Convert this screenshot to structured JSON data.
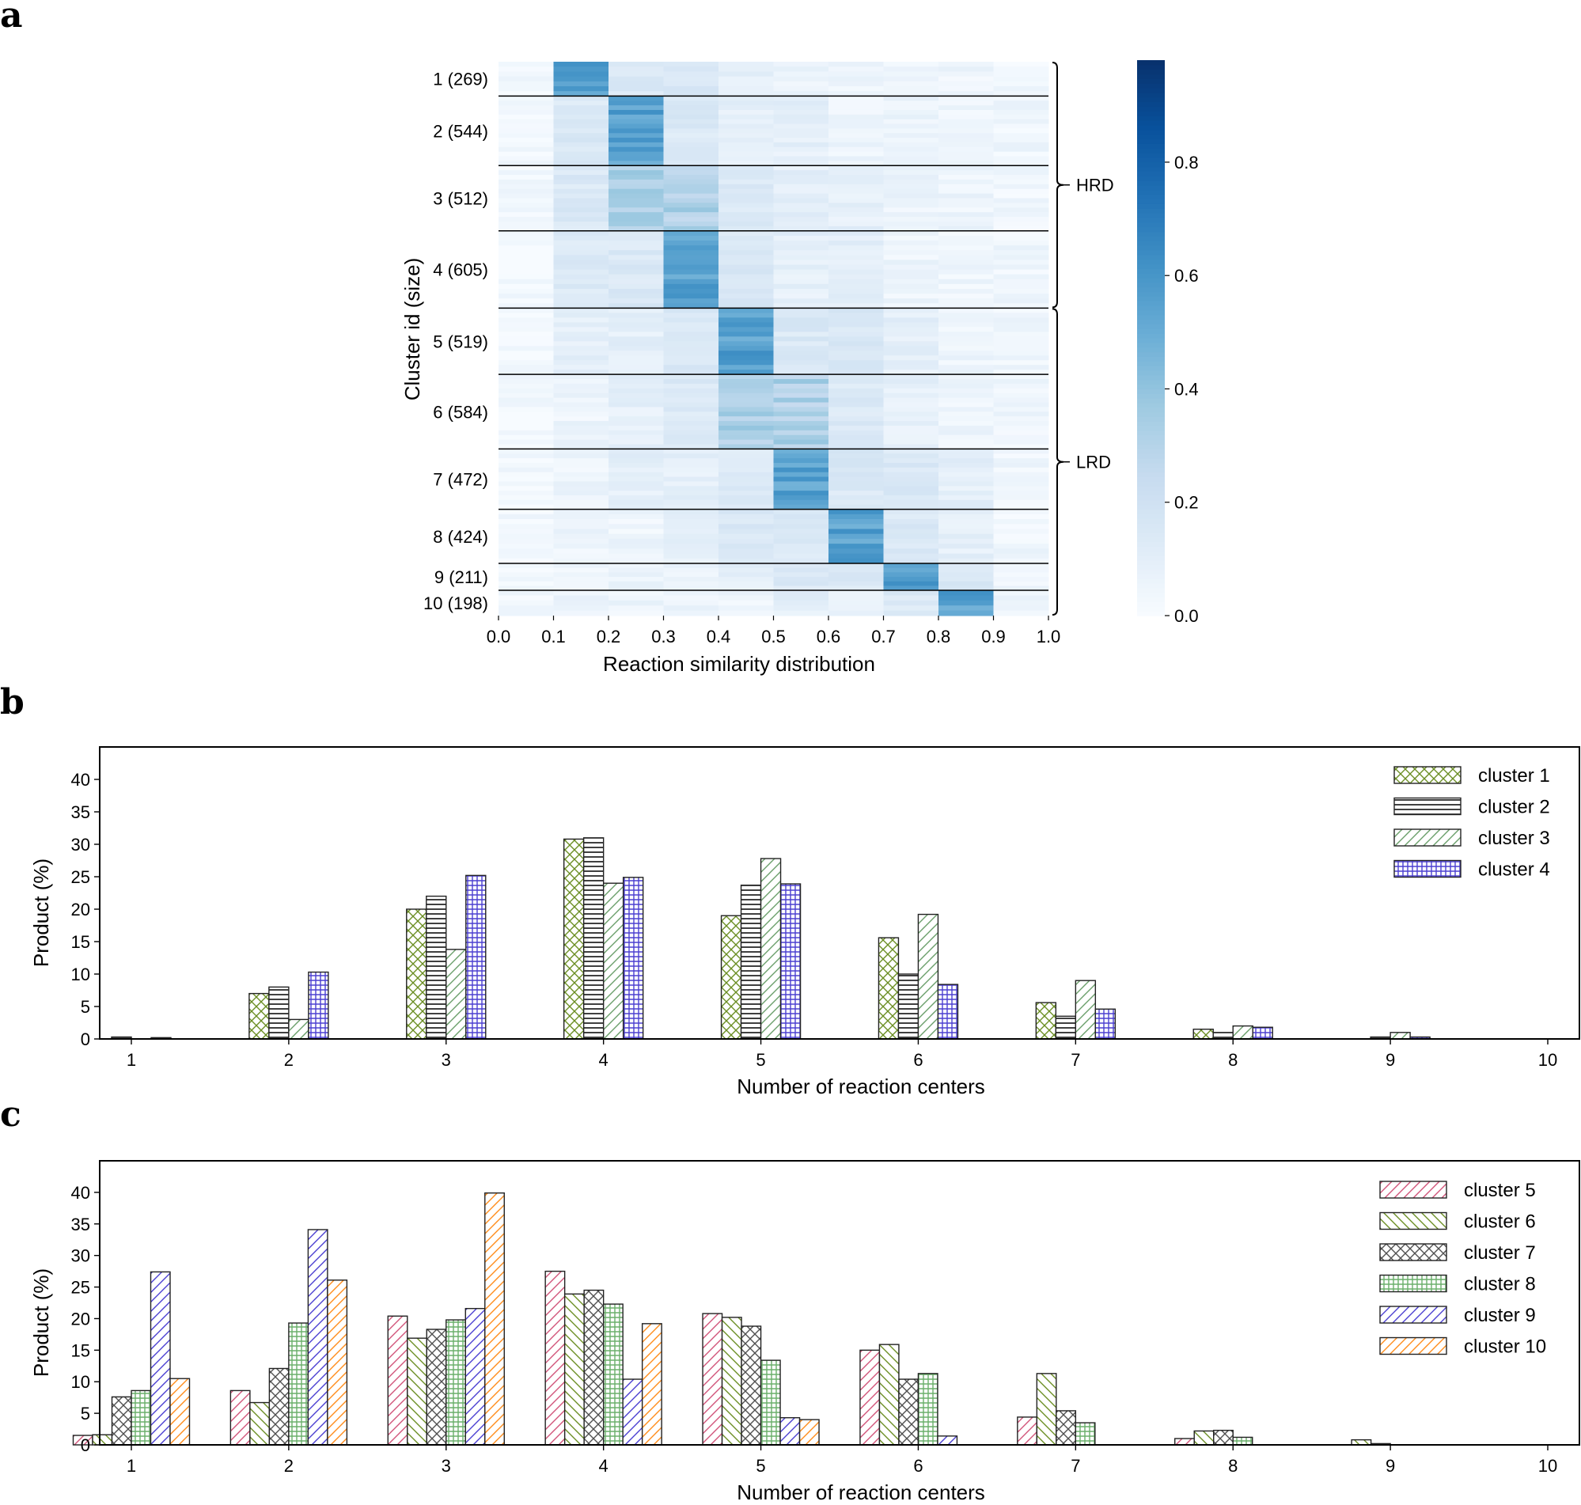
{
  "panels": {
    "a": {
      "letter": "a",
      "xlabel": "Reaction similarity distribution",
      "ylabel": "Cluster id (size)",
      "x_ticks": [
        "0.0",
        "0.1",
        "0.2",
        "0.3",
        "0.4",
        "0.5",
        "0.6",
        "0.7",
        "0.8",
        "0.9",
        "1.0"
      ],
      "colorbar_ticks": [
        "0.0",
        "0.2",
        "0.4",
        "0.6",
        "0.8"
      ],
      "cluster_labels": [
        "1 (269)",
        "2 (544)",
        "3 (512)",
        "4 (605)",
        "5 (519)",
        "6 (584)",
        "7 (472)",
        "8 (424)",
        "9 (211)",
        "10 (198)"
      ],
      "groups": [
        {
          "label": "HRD"
        },
        {
          "label": "LRD"
        }
      ]
    },
    "b": {
      "letter": "b"
    },
    "c": {
      "letter": "c"
    }
  },
  "chart_data": [
    {
      "type": "heatmap",
      "xlabel": "Reaction similarity distribution",
      "ylabel": "Cluster id (size)",
      "x_bins": [
        0.0,
        0.1,
        0.2,
        0.3,
        0.4,
        0.5,
        0.6,
        0.7,
        0.8,
        0.9,
        1.0
      ],
      "clusters": [
        {
          "id": 1,
          "size": 269,
          "peak_bin": [
            0.1,
            0.2
          ]
        },
        {
          "id": 2,
          "size": 544,
          "peak_bin": [
            0.2,
            0.3
          ]
        },
        {
          "id": 3,
          "size": 512,
          "peak_bin": [
            0.2,
            0.4
          ]
        },
        {
          "id": 4,
          "size": 605,
          "peak_bin": [
            0.3,
            0.4
          ]
        },
        {
          "id": 5,
          "size": 519,
          "peak_bin": [
            0.4,
            0.5
          ]
        },
        {
          "id": 6,
          "size": 584,
          "peak_bin": [
            0.4,
            0.6
          ]
        },
        {
          "id": 7,
          "size": 472,
          "peak_bin": [
            0.5,
            0.6
          ]
        },
        {
          "id": 8,
          "size": 424,
          "peak_bin": [
            0.6,
            0.7
          ]
        },
        {
          "id": 9,
          "size": 211,
          "peak_bin": [
            0.7,
            0.8
          ]
        },
        {
          "id": 10,
          "size": 198,
          "peak_bin": [
            0.8,
            0.9
          ]
        }
      ],
      "groups": [
        {
          "label": "HRD",
          "clusters": [
            1,
            2,
            3,
            4
          ]
        },
        {
          "label": "LRD",
          "clusters": [
            5,
            6,
            7,
            8,
            9,
            10
          ]
        }
      ],
      "colorbar": {
        "min": 0.0,
        "max": 0.98,
        "ticks": [
          0.0,
          0.2,
          0.4,
          0.6,
          0.8
        ],
        "colormap": "Blues"
      }
    },
    {
      "type": "bar",
      "xlabel": "Number of reaction centers",
      "ylabel": "Product (%)",
      "categories": [
        "1",
        "2",
        "3",
        "4",
        "5",
        "6",
        "7",
        "8",
        "9",
        "10"
      ],
      "ylim": [
        0,
        45
      ],
      "y_ticks": [
        0,
        5,
        10,
        15,
        20,
        25,
        30,
        35,
        40
      ],
      "legend_position": "top-right",
      "series": [
        {
          "name": "cluster 1",
          "color": "#6b8e23",
          "hatch": "cross",
          "values": [
            0.0,
            7.0,
            20.0,
            30.8,
            19.0,
            15.6,
            5.6,
            1.5,
            0.0,
            0.0
          ]
        },
        {
          "name": "cluster 2",
          "color": "#000000",
          "hatch": "horizontal",
          "values": [
            0.3,
            8.0,
            22.0,
            31.0,
            23.7,
            10.0,
            3.5,
            1.0,
            0.3,
            0.0
          ]
        },
        {
          "name": "cluster 3",
          "color": "#6a9f6a",
          "hatch": "diagonal",
          "values": [
            0.0,
            3.0,
            13.8,
            24.0,
            27.8,
            19.2,
            9.0,
            2.0,
            1.0,
            0.0
          ]
        },
        {
          "name": "cluster 4",
          "color": "#4b3fd1",
          "hatch": "grid",
          "values": [
            0.2,
            10.3,
            25.2,
            24.9,
            23.9,
            8.4,
            4.6,
            1.8,
            0.3,
            0.0
          ]
        }
      ]
    },
    {
      "type": "bar",
      "xlabel": "Number of reaction centers",
      "ylabel": "Product (%)",
      "categories": [
        "1",
        "2",
        "3",
        "4",
        "5",
        "6",
        "7",
        "8",
        "9",
        "10"
      ],
      "ylim": [
        0,
        45
      ],
      "y_ticks": [
        0,
        5,
        10,
        15,
        20,
        25,
        30,
        35,
        40
      ],
      "legend_position": "top-right",
      "series": [
        {
          "name": "cluster 5",
          "color": "#d1547a",
          "hatch": "diagonal",
          "values": [
            1.5,
            8.6,
            20.4,
            27.5,
            20.8,
            15.0,
            4.4,
            1.0,
            0.0,
            0.0
          ]
        },
        {
          "name": "cluster 6",
          "color": "#6b8e23",
          "hatch": "backdiagonal",
          "values": [
            1.6,
            6.7,
            16.9,
            23.9,
            20.2,
            15.9,
            11.3,
            2.2,
            0.8,
            0.0
          ]
        },
        {
          "name": "cluster 7",
          "color": "#505050",
          "hatch": "cross",
          "values": [
            7.6,
            12.1,
            18.3,
            24.5,
            18.8,
            10.4,
            5.4,
            2.3,
            0.2,
            0.0
          ]
        },
        {
          "name": "cluster 8",
          "color": "#6aaf6a",
          "hatch": "grid",
          "values": [
            8.6,
            19.3,
            19.8,
            22.3,
            13.4,
            11.3,
            3.5,
            1.2,
            0.0,
            0.0
          ]
        },
        {
          "name": "cluster 9",
          "color": "#4b3fd1",
          "hatch": "diagonal",
          "values": [
            27.4,
            34.1,
            21.6,
            10.4,
            4.3,
            1.4,
            0.0,
            0.0,
            0.0,
            0.0
          ]
        },
        {
          "name": "cluster 10",
          "color": "#ff8c1a",
          "hatch": "diagonal",
          "values": [
            10.5,
            26.1,
            39.9,
            19.2,
            4.0,
            0.0,
            0.0,
            0.0,
            0.0,
            0.0
          ]
        }
      ]
    }
  ]
}
